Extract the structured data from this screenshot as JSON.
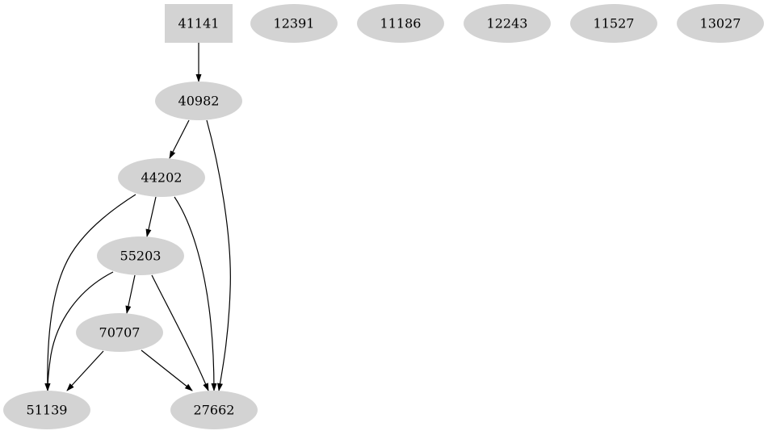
{
  "graph": {
    "node_fill": "#d3d3d3",
    "edge_color": "#000000",
    "nodes": [
      {
        "id": "41141",
        "shape": "box"
      },
      {
        "id": "12391",
        "shape": "ellipse"
      },
      {
        "id": "11186",
        "shape": "ellipse"
      },
      {
        "id": "12243",
        "shape": "ellipse"
      },
      {
        "id": "11527",
        "shape": "ellipse"
      },
      {
        "id": "13027",
        "shape": "ellipse"
      },
      {
        "id": "40982",
        "shape": "ellipse"
      },
      {
        "id": "44202",
        "shape": "ellipse"
      },
      {
        "id": "55203",
        "shape": "ellipse"
      },
      {
        "id": "70707",
        "shape": "ellipse"
      },
      {
        "id": "51139",
        "shape": "ellipse"
      },
      {
        "id": "27662",
        "shape": "ellipse"
      }
    ],
    "edges": [
      {
        "from": "41141",
        "to": "40982"
      },
      {
        "from": "40982",
        "to": "44202"
      },
      {
        "from": "40982",
        "to": "27662"
      },
      {
        "from": "44202",
        "to": "55203"
      },
      {
        "from": "44202",
        "to": "51139"
      },
      {
        "from": "44202",
        "to": "27662"
      },
      {
        "from": "55203",
        "to": "70707"
      },
      {
        "from": "55203",
        "to": "51139"
      },
      {
        "from": "55203",
        "to": "27662"
      },
      {
        "from": "70707",
        "to": "51139"
      },
      {
        "from": "70707",
        "to": "27662"
      }
    ]
  }
}
